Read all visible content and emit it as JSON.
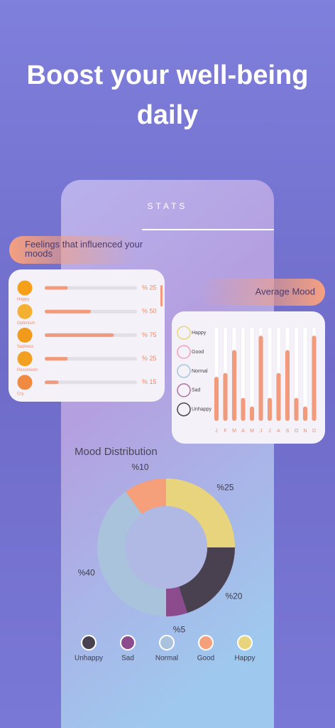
{
  "title": "Boost your well-being daily",
  "screen_title": "STATS",
  "chart_data": [
    {
      "type": "hbar",
      "title": "Feelings that influenced your moods",
      "categories": [
        "Happy",
        "Optimism",
        "Sadness",
        "Pessimism",
        "Cry"
      ],
      "values": [
        25,
        50,
        75,
        25,
        15
      ],
      "value_labels": [
        "% 25",
        "% 50",
        "% 75",
        "% 25",
        "% 15"
      ],
      "xlim": [
        0,
        100
      ],
      "color": "#f29a7c"
    },
    {
      "type": "bar",
      "title": "Average Mood",
      "categories": [
        "J",
        "F",
        "M",
        "A",
        "M",
        "J",
        "J",
        "A",
        "S",
        "O",
        "N",
        "D"
      ],
      "values": [
        2.7,
        2.9,
        4.1,
        1.6,
        1.15,
        4.85,
        1.6,
        2.9,
        4.1,
        1.6,
        1.15,
        4.85
      ],
      "ylim": [
        0.4,
        5.3
      ],
      "yticks": [
        {
          "value": 5,
          "label": "Happy"
        },
        {
          "value": 4,
          "label": "Good"
        },
        {
          "value": 3,
          "label": "Normal"
        },
        {
          "value": 2,
          "label": "Sad"
        },
        {
          "value": 1,
          "label": "Unhappy"
        }
      ],
      "color": "#f29a7c"
    },
    {
      "type": "donut",
      "title": "Mood Distribution",
      "categories": [
        "Unhappy",
        "Sad",
        "Normal",
        "Good",
        "Happy"
      ],
      "values": [
        20,
        5,
        40,
        10,
        25
      ],
      "value_labels": [
        "%20",
        "%5",
        "%40",
        "%10",
        "%25"
      ],
      "colors": [
        "#4a4150",
        "#8b4b8c",
        "#a9c3dc",
        "#f5a07a",
        "#e8d47c"
      ]
    }
  ]
}
